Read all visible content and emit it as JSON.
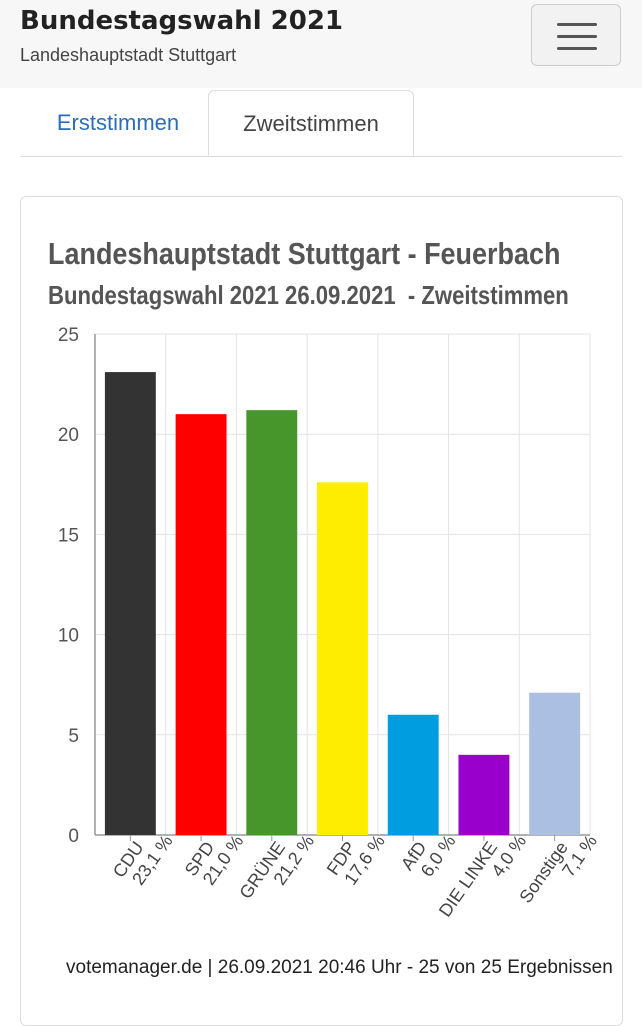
{
  "header": {
    "title": "Bundestagswahl 2021",
    "subtitle": "Landeshauptstadt Stuttgart"
  },
  "tabs": [
    {
      "label": "Erststimmen"
    },
    {
      "label": "Zweitstimmen"
    }
  ],
  "chart_data": {
    "type": "bar",
    "title": "Landeshauptstadt Stuttgart - Feuerbach",
    "subtitle": "Bundestagswahl 2021 26.09.2021  - Zweitstimmen",
    "categories": [
      "CDU",
      "SPD",
      "GRÜNE",
      "FDP",
      "AfD",
      "DIE LINKE",
      "Sonstige"
    ],
    "value_labels": [
      "23,1 %",
      "21,0 %",
      "21,2 %",
      "17,6 %",
      "6,0 %",
      "4,0 %",
      "7,1 %"
    ],
    "values": [
      23.1,
      21.0,
      21.2,
      17.6,
      6.0,
      4.0,
      7.1
    ],
    "colors": [
      "#333333",
      "#ff0000",
      "#46962b",
      "#ffed00",
      "#009ee0",
      "#9900cc",
      "#abbfe3"
    ],
    "ylim": [
      0,
      25
    ],
    "yticks": [
      0,
      5,
      10,
      15,
      20,
      25
    ],
    "grid": true,
    "xlabel": "",
    "ylabel": ""
  },
  "footer": {
    "text": "votemanager.de | 26.09.2021 20:46 Uhr - 25 von 25 Ergebnissen"
  }
}
